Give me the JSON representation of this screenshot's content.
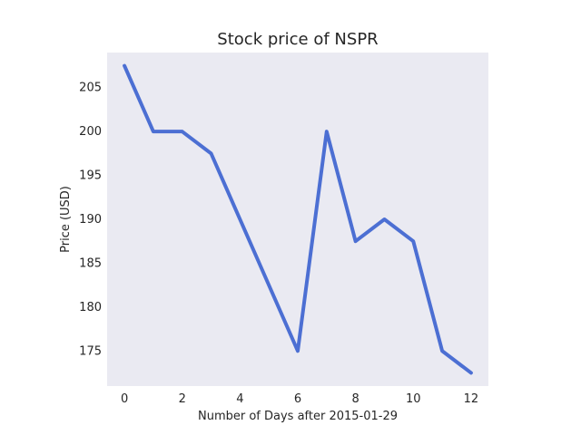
{
  "chart_data": {
    "type": "line",
    "title": "Stock price of NSPR",
    "xlabel": "Number of Days after 2015-01-29",
    "ylabel": "Price (USD)",
    "xlim": [
      -0.6,
      12.6
    ],
    "ylim": [
      171.0,
      209.0
    ],
    "xticks": [
      0,
      2,
      4,
      6,
      8,
      10,
      12
    ],
    "yticks": [
      175,
      180,
      185,
      190,
      195,
      200,
      205
    ],
    "grid": false,
    "x": [
      0,
      1,
      2,
      3,
      4,
      5,
      6,
      7,
      8,
      9,
      10,
      11,
      12
    ],
    "series": [
      {
        "values": [
          207.5,
          200.0,
          200.0,
          197.5,
          190.0,
          182.5,
          175.0,
          200.0,
          187.5,
          190.0,
          187.5,
          175.0,
          172.5
        ]
      }
    ],
    "colors": {
      "line": "#4c6fd3",
      "plot_background": "#eaeaf2",
      "text": "#262626"
    }
  }
}
